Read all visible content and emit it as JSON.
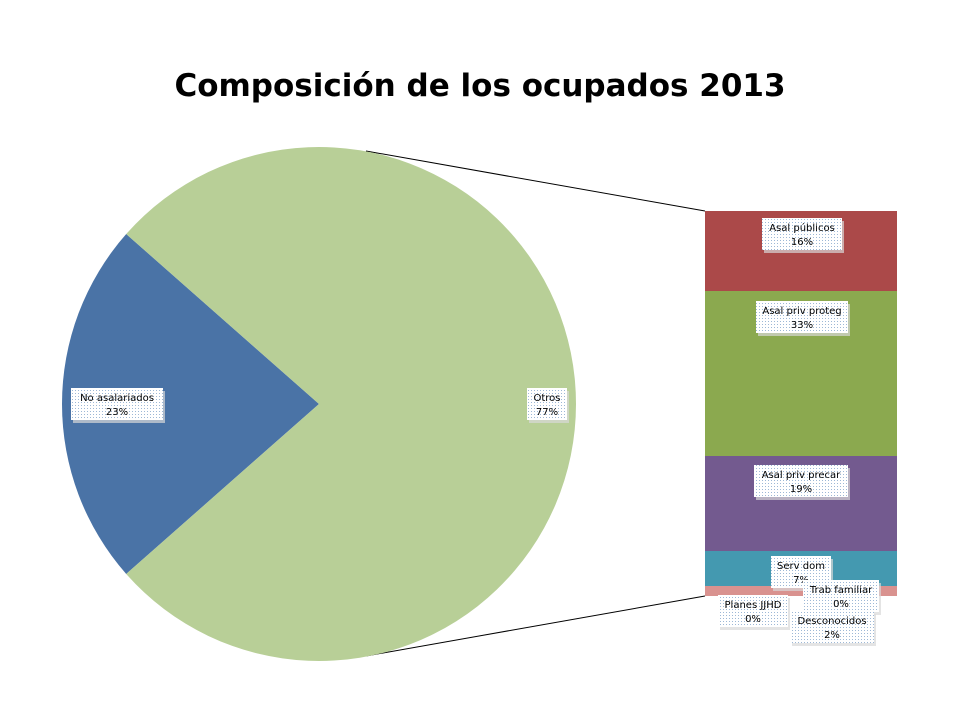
{
  "chart_data": {
    "type": "bar-of-pie",
    "title": "Composición de los ocupados 2013",
    "pie": {
      "slices": [
        {
          "name": "No asalariados",
          "value": 23,
          "label": "23%",
          "color": "#4a73a6"
        },
        {
          "name": "Otros",
          "value": 77,
          "label": "77%",
          "color": "#b8cf97"
        }
      ]
    },
    "stack": {
      "segments": [
        {
          "name": "Asal públicos",
          "value": 16,
          "label": "16%",
          "color": "#ab4949"
        },
        {
          "name": "Asal priv proteg",
          "value": 33,
          "label": "33%",
          "color": "#8ba94f"
        },
        {
          "name": "Asal priv precar",
          "value": 19,
          "label": "19%",
          "color": "#735a8f"
        },
        {
          "name": "Serv dom",
          "value": 7,
          "label": "7%",
          "color": "#4499b0"
        },
        {
          "name": "Trab familiar",
          "value": 0,
          "label": "0%",
          "color": "#d9928f"
        },
        {
          "name": "Planes JJHD",
          "value": 0,
          "label": "0%",
          "color": "#d9928f"
        },
        {
          "name": "Desconocidos",
          "value": 2,
          "label": "2%",
          "color": "#d9928f"
        }
      ]
    }
  }
}
